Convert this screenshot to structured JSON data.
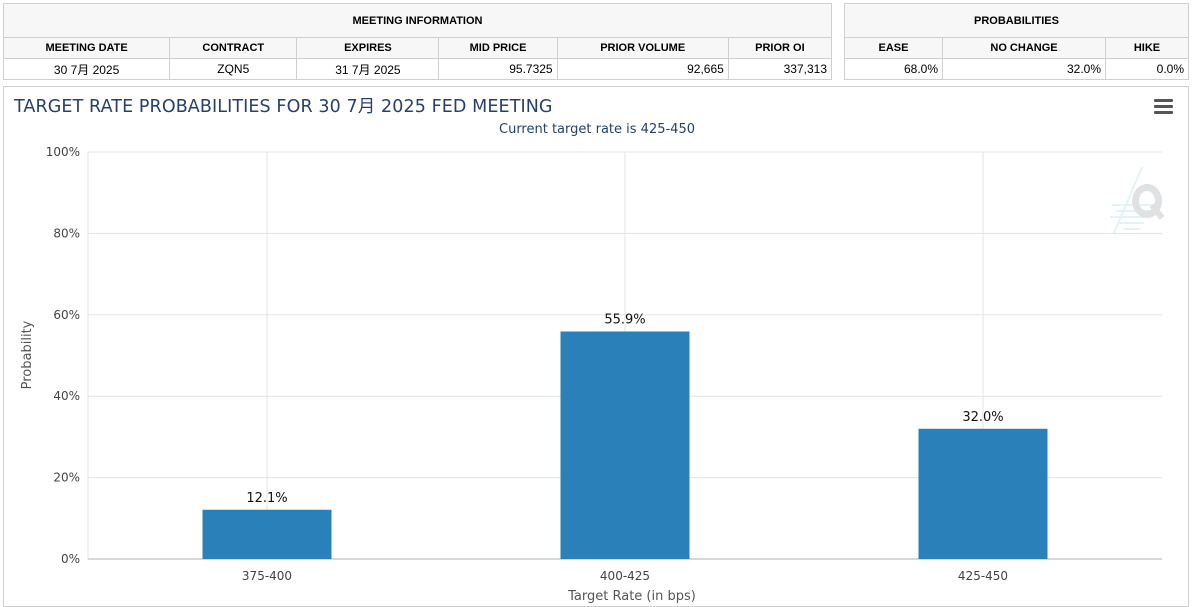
{
  "meeting_info": {
    "title": "MEETING INFORMATION",
    "headers": [
      "MEETING DATE",
      "CONTRACT",
      "EXPIRES",
      "MID PRICE",
      "PRIOR VOLUME",
      "PRIOR OI"
    ],
    "values": [
      "30 7月 2025",
      "ZQN5",
      "31 7月 2025",
      "95.7325",
      "92,665",
      "337,313"
    ]
  },
  "probabilities": {
    "title": "PROBABILITIES",
    "headers": [
      "EASE",
      "NO CHANGE",
      "HIKE"
    ],
    "values": [
      "68.0%",
      "32.0%",
      "0.0%"
    ]
  },
  "chart_panel": {
    "menu_icon": "hamburger-menu-icon",
    "watermark_icon": "quikstrike-q-logo-icon"
  },
  "chart_data": {
    "type": "bar",
    "title": "TARGET RATE PROBABILITIES FOR 30 7月 2025 FED MEETING",
    "subtitle": "Current target rate is 425-450",
    "categories": [
      "375-400",
      "400-425",
      "425-450"
    ],
    "values": [
      12.1,
      55.9,
      32.0
    ],
    "data_labels": [
      "12.1%",
      "55.9%",
      "32.0%"
    ],
    "xlabel": "Target Rate (in bps)",
    "ylabel": "Probability",
    "ylim": [
      0,
      100
    ],
    "yticks": [
      "0%",
      "20%",
      "40%",
      "60%",
      "80%",
      "100%"
    ],
    "grid": true,
    "bar_color": "#2a80b9"
  }
}
